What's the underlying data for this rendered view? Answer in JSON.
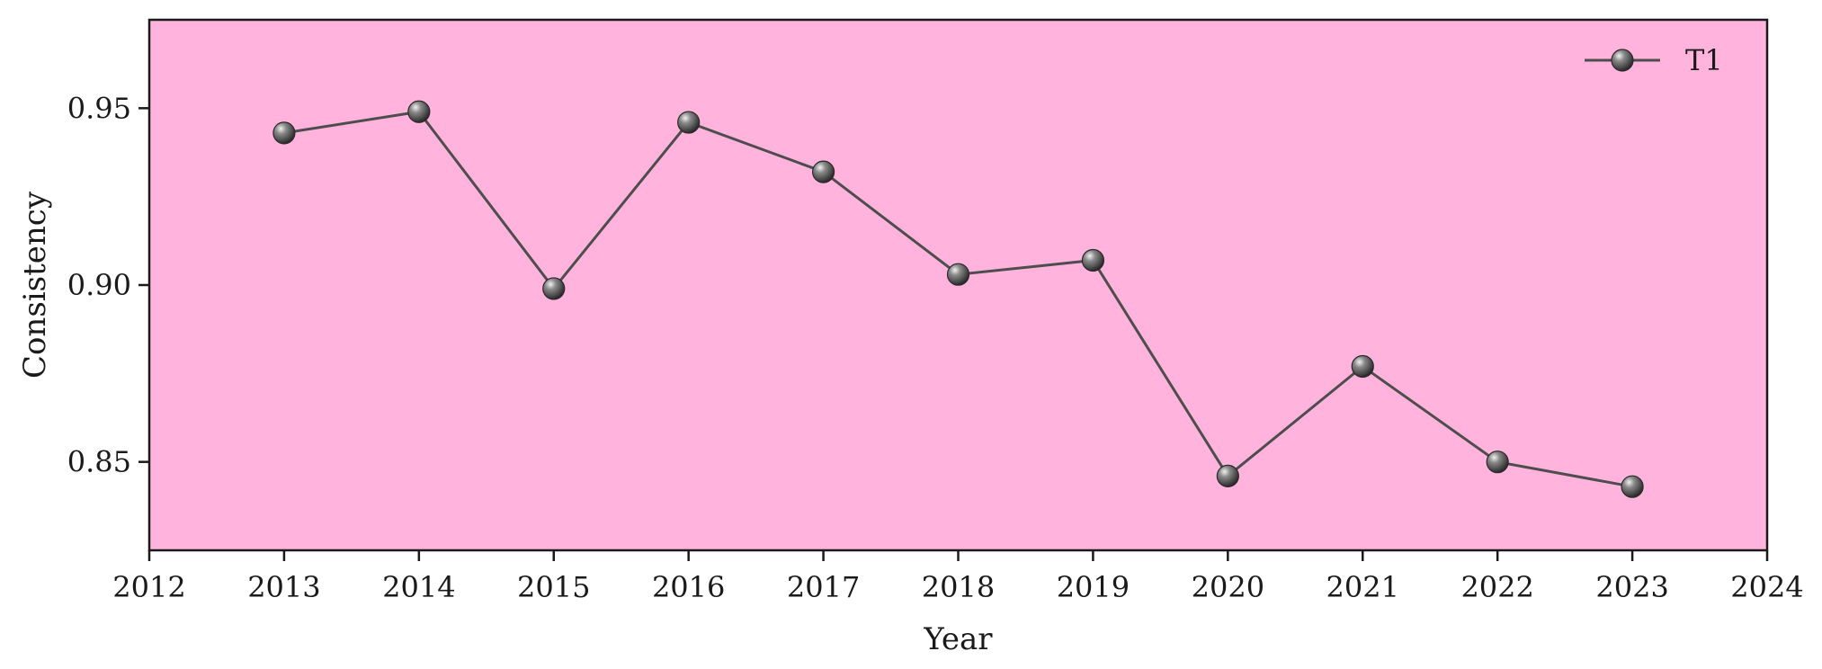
{
  "chart_data": {
    "type": "line",
    "title": "",
    "xlabel": "Year",
    "ylabel": "Consistency",
    "xlim": [
      2012,
      2024
    ],
    "ylim": [
      0.825,
      0.975
    ],
    "x_ticks": [
      2012,
      2013,
      2014,
      2015,
      2016,
      2017,
      2018,
      2019,
      2020,
      2021,
      2022,
      2023,
      2024
    ],
    "x_tick_labels": [
      "2012",
      "2013",
      "2014",
      "2015",
      "2016",
      "2017",
      "2018",
      "2019",
      "2020",
      "2021",
      "2022",
      "2023",
      "2024"
    ],
    "y_ticks": [
      0.85,
      0.9,
      0.95
    ],
    "y_tick_labels": [
      "0.85",
      "0.90",
      "0.95"
    ],
    "grid": false,
    "legend_position": "top-right",
    "background_color": "#ffb3dd",
    "line_color": "#4d4d4d",
    "marker_color": "#555555",
    "series": [
      {
        "name": "T1",
        "x": [
          2013,
          2014,
          2015,
          2016,
          2017,
          2018,
          2019,
          2020,
          2021,
          2022,
          2023
        ],
        "values": [
          0.943,
          0.949,
          0.899,
          0.946,
          0.932,
          0.903,
          0.907,
          0.846,
          0.877,
          0.85,
          0.843
        ]
      }
    ]
  }
}
